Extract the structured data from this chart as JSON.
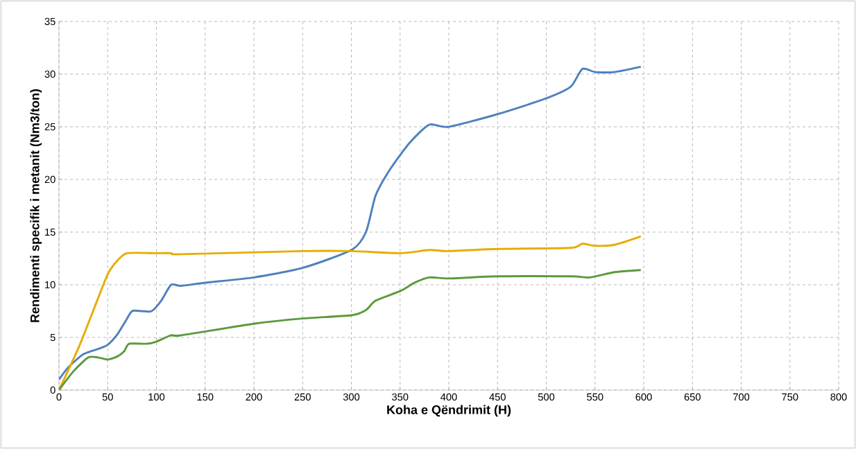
{
  "chart_data": {
    "type": "line",
    "xlabel": "Koha e Qëndrimit (H)",
    "ylabel": "Rendimenti specifik i metanit (Nm3/ton)",
    "xlim": [
      0,
      800
    ],
    "ylim": [
      0,
      35
    ],
    "xticks": [
      0,
      50,
      100,
      150,
      200,
      250,
      300,
      350,
      400,
      450,
      500,
      550,
      600,
      650,
      700,
      750,
      800
    ],
    "yticks": [
      0,
      5,
      10,
      15,
      20,
      25,
      30,
      35
    ],
    "grid": true,
    "marker": "none",
    "line_style": "solid",
    "series": [
      {
        "color": "#4f81bd",
        "x": [
          0,
          10,
          25,
          40,
          50,
          60,
          68,
          75,
          85,
          95,
          105,
          115,
          125,
          150,
          200,
          250,
          300,
          315,
          325,
          340,
          360,
          380,
          400,
          450,
          500,
          525,
          537,
          550,
          570,
          597
        ],
        "values": [
          1.0,
          2.2,
          3.4,
          3.9,
          4.3,
          5.3,
          6.5,
          7.5,
          7.5,
          7.5,
          8.5,
          10.0,
          9.9,
          10.2,
          10.7,
          11.6,
          13.3,
          15.0,
          18.5,
          21.0,
          23.5,
          25.2,
          25.0,
          26.2,
          27.7,
          28.8,
          30.5,
          30.2,
          30.2,
          30.7
        ]
      },
      {
        "color": "#e6ac00",
        "x": [
          0,
          20,
          35,
          50,
          60,
          70,
          100,
          115,
          125,
          250,
          300,
          350,
          380,
          400,
          450,
          525,
          537,
          550,
          570,
          597
        ],
        "values": [
          0,
          4.0,
          7.5,
          11.0,
          12.3,
          13.0,
          13.0,
          13.0,
          12.9,
          13.2,
          13.2,
          13.0,
          13.3,
          13.2,
          13.4,
          13.5,
          13.9,
          13.7,
          13.8,
          14.6
        ]
      },
      {
        "color": "#5b9a3c",
        "x": [
          0,
          15,
          30,
          40,
          50,
          60,
          67,
          72,
          90,
          100,
          115,
          125,
          200,
          250,
          300,
          315,
          325,
          350,
          365,
          380,
          400,
          450,
          525,
          545,
          570,
          597
        ],
        "values": [
          0,
          1.8,
          3.1,
          3.1,
          2.9,
          3.2,
          3.7,
          4.4,
          4.4,
          4.6,
          5.2,
          5.2,
          6.3,
          6.8,
          7.1,
          7.6,
          8.5,
          9.4,
          10.2,
          10.7,
          10.6,
          10.8,
          10.8,
          10.7,
          11.2,
          11.4
        ]
      }
    ]
  }
}
